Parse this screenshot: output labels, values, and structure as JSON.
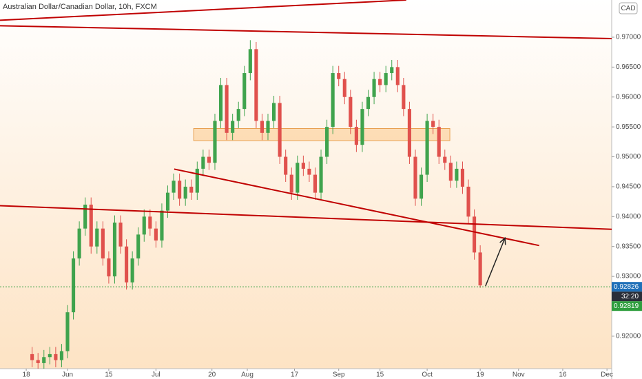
{
  "chart_data": {
    "type": "candlestick",
    "title": "Australian Dollar/Canadian Dollar, 10h, FXCM",
    "currency": "CAD",
    "up_color": "#3fa34d",
    "down_color": "#e0514d",
    "x": [
      141,
      143,
      145,
      147,
      149,
      151,
      153,
      155,
      157,
      159,
      161,
      163,
      165,
      167,
      169,
      171,
      173,
      175,
      177,
      179,
      181,
      183,
      185,
      187,
      189,
      191,
      193,
      195,
      197,
      199,
      201,
      203,
      205,
      207,
      209,
      211,
      213,
      215,
      217,
      219,
      221,
      223,
      225,
      227,
      229,
      231,
      233,
      235,
      237,
      239,
      241,
      243,
      245,
      247,
      249,
      251,
      253,
      255,
      257,
      259,
      261,
      263,
      265,
      267,
      269,
      271,
      273,
      275,
      277,
      279,
      281,
      283,
      285,
      287,
      289,
      291,
      293
    ],
    "open": [
      0.917,
      0.916,
      0.9155,
      0.9165,
      0.917,
      0.916,
      0.9175,
      0.924,
      0.933,
      0.938,
      0.942,
      0.935,
      0.938,
      0.933,
      0.93,
      0.939,
      0.935,
      0.929,
      0.933,
      0.937,
      0.94,
      0.938,
      0.936,
      0.941,
      0.944,
      0.946,
      0.943,
      0.945,
      0.944,
      0.948,
      0.95,
      0.949,
      0.956,
      0.962,
      0.954,
      0.956,
      0.958,
      0.964,
      0.968,
      0.956,
      0.954,
      0.956,
      0.959,
      0.95,
      0.947,
      0.944,
      0.949,
      0.948,
      0.947,
      0.944,
      0.95,
      0.955,
      0.964,
      0.963,
      0.96,
      0.955,
      0.952,
      0.958,
      0.96,
      0.963,
      0.962,
      0.964,
      0.965,
      0.962,
      0.958,
      0.95,
      0.943,
      0.947,
      0.956,
      0.955,
      0.95,
      0.949,
      0.946,
      0.948,
      0.945,
      0.94,
      0.934
    ],
    "high": [
      0.9182,
      0.9172,
      0.9177,
      0.9182,
      0.9182,
      0.9187,
      0.9252,
      0.9342,
      0.9392,
      0.9432,
      0.9432,
      0.9392,
      0.9392,
      0.9342,
      0.9402,
      0.9402,
      0.9362,
      0.9342,
      0.9382,
      0.9412,
      0.9412,
      0.9392,
      0.9422,
      0.9452,
      0.9472,
      0.9472,
      0.9462,
      0.9462,
      0.9492,
      0.9512,
      0.9512,
      0.9572,
      0.9632,
      0.9632,
      0.9572,
      0.9592,
      0.9652,
      0.9695,
      0.9692,
      0.9572,
      0.9572,
      0.9602,
      0.9602,
      0.9512,
      0.9482,
      0.9502,
      0.9502,
      0.9492,
      0.9482,
      0.9512,
      0.9562,
      0.9652,
      0.9652,
      0.9642,
      0.9612,
      0.9562,
      0.9592,
      0.9612,
      0.9642,
      0.9642,
      0.9652,
      0.9662,
      0.9662,
      0.9632,
      0.9592,
      0.9512,
      0.9482,
      0.9572,
      0.9572,
      0.9562,
      0.9512,
      0.9502,
      0.9492,
      0.9492,
      0.9462,
      0.9412,
      0.9352
    ],
    "low": [
      0.9148,
      0.9143,
      0.9143,
      0.9153,
      0.9148,
      0.9148,
      0.9163,
      0.9228,
      0.9318,
      0.9368,
      0.9338,
      0.9338,
      0.9318,
      0.9288,
      0.9288,
      0.9338,
      0.9278,
      0.9278,
      0.9318,
      0.9358,
      0.9368,
      0.9348,
      0.9348,
      0.9398,
      0.9428,
      0.9418,
      0.9418,
      0.9428,
      0.9428,
      0.9468,
      0.9478,
      0.9478,
      0.9548,
      0.9528,
      0.9528,
      0.9548,
      0.9568,
      0.9628,
      0.9548,
      0.9528,
      0.9528,
      0.9548,
      0.9488,
      0.9458,
      0.9428,
      0.9428,
      0.9468,
      0.9458,
      0.9428,
      0.9428,
      0.9488,
      0.9538,
      0.9618,
      0.9588,
      0.9538,
      0.9508,
      0.9508,
      0.9568,
      0.9588,
      0.9608,
      0.9608,
      0.9628,
      0.9608,
      0.9568,
      0.9488,
      0.9418,
      0.9418,
      0.9458,
      0.9538,
      0.9488,
      0.9478,
      0.9448,
      0.9448,
      0.9438,
      0.9388,
      0.9328,
      0.9281
    ],
    "close": [
      0.916,
      0.9155,
      0.9165,
      0.917,
      0.916,
      0.9175,
      0.924,
      0.933,
      0.938,
      0.942,
      0.935,
      0.938,
      0.933,
      0.93,
      0.939,
      0.935,
      0.929,
      0.933,
      0.937,
      0.94,
      0.938,
      0.936,
      0.941,
      0.944,
      0.946,
      0.943,
      0.945,
      0.944,
      0.948,
      0.95,
      0.949,
      0.956,
      0.962,
      0.954,
      0.956,
      0.958,
      0.964,
      0.968,
      0.956,
      0.954,
      0.956,
      0.959,
      0.95,
      0.947,
      0.944,
      0.949,
      0.948,
      0.947,
      0.944,
      0.95,
      0.955,
      0.964,
      0.963,
      0.96,
      0.955,
      0.952,
      0.958,
      0.96,
      0.963,
      0.962,
      0.964,
      0.965,
      0.962,
      0.958,
      0.95,
      0.943,
      0.947,
      0.956,
      0.955,
      0.95,
      0.949,
      0.946,
      0.948,
      0.945,
      0.94,
      0.934,
      0.9285
    ],
    "xlim": [
      130.1,
      337.6
    ],
    "ylim": [
      0.91457,
      0.97622
    ],
    "xticks": [
      {
        "value": 139,
        "label": "18"
      },
      {
        "value": 153,
        "label": "Jun"
      },
      {
        "value": 167,
        "label": "15"
      },
      {
        "value": 183,
        "label": "Jul"
      },
      {
        "value": 202,
        "label": "20"
      },
      {
        "value": 214,
        "label": "Aug"
      },
      {
        "value": 230,
        "label": "17"
      },
      {
        "value": 245,
        "label": "Sep"
      },
      {
        "value": 259,
        "label": "15"
      },
      {
        "value": 275,
        "label": "Oct"
      },
      {
        "value": 293,
        "label": "19"
      },
      {
        "value": 306,
        "label": "Nov"
      },
      {
        "value": 321,
        "label": "16"
      },
      {
        "value": 336,
        "label": "Dec"
      }
    ],
    "yticks": [
      {
        "value": 0.92,
        "label": "0.92000"
      },
      {
        "value": 0.93,
        "label": "0.93000"
      },
      {
        "value": 0.935,
        "label": "0.93500"
      },
      {
        "value": 0.94,
        "label": "0.94000"
      },
      {
        "value": 0.945,
        "label": "0.94500"
      },
      {
        "value": 0.95,
        "label": "0.95000"
      },
      {
        "value": 0.955,
        "label": "0.95500"
      },
      {
        "value": 0.96,
        "label": "0.96000"
      },
      {
        "value": 0.965,
        "label": "0.96500"
      },
      {
        "value": 0.97,
        "label": "0.97000"
      }
    ],
    "trendline_color": "#c00000",
    "trendlines": [
      {
        "x": [
          130.1,
          337.6
        ],
        "y": [
          0.97192,
          0.96977
        ]
      },
      {
        "x": [
          130.1,
          267.9
        ],
        "y": [
          0.97283,
          0.97622
        ]
      },
      {
        "x": [
          130.1,
          337.6
        ],
        "y": [
          0.94183,
          0.93787
        ]
      },
      {
        "x": [
          189.2,
          313
        ],
        "y": [
          0.94794,
          0.93516
        ]
      }
    ],
    "zone": {
      "x": [
        195.8,
        282.7
      ],
      "y": [
        0.95473,
        0.9527
      ],
      "color": "#fbc98a"
    },
    "arrow": {
      "x": [
        294.8,
        301.4
      ],
      "y": [
        0.92839,
        0.93642
      ]
    },
    "last_price": 0.92826,
    "last_price_color": "#1e6fb8",
    "countdown": "32:20",
    "bid_price": 0.92819,
    "bid_color": "#2e9e3e"
  }
}
